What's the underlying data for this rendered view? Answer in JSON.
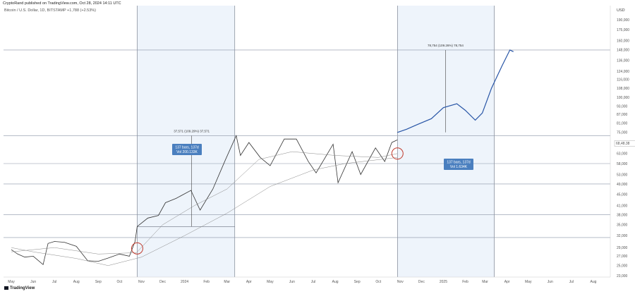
{
  "header": {
    "author_line": "CryptoRand published on TradingView.com, Oct 28, 2024 14:11 UTC",
    "symbol_line": "Bitcoin / U.S. Dollar, 1D, BITSTAMP  +1,788 (+2.53%)",
    "currency": "USD",
    "brand": "TradingView"
  },
  "chart_data": {
    "type": "line",
    "scale": "log",
    "y_ticks": [
      {
        "label": "190,000",
        "v": 190000
      },
      {
        "label": "175,000",
        "v": 175000
      },
      {
        "label": "160,000",
        "v": 160000
      },
      {
        "label": "148,000",
        "v": 148000
      },
      {
        "label": "136,000",
        "v": 136000
      },
      {
        "label": "124,000",
        "v": 124000
      },
      {
        "label": "116,000",
        "v": 116000
      },
      {
        "label": "108,000",
        "v": 108000
      },
      {
        "label": "100,000",
        "v": 100000
      },
      {
        "label": "93,000",
        "v": 93000
      },
      {
        "label": "87,000",
        "v": 87000
      },
      {
        "label": "81,000",
        "v": 81000
      },
      {
        "label": "75,000",
        "v": 75000
      },
      {
        "label": "69,000",
        "v": 69000
      },
      {
        "label": "63,000",
        "v": 63000
      },
      {
        "label": "58,000",
        "v": 58000
      },
      {
        "label": "53,000",
        "v": 53000
      },
      {
        "label": "49,000",
        "v": 49000
      },
      {
        "label": "45,000",
        "v": 45000
      },
      {
        "label": "41,000",
        "v": 41000
      },
      {
        "label": "38,000",
        "v": 38000
      },
      {
        "label": "35,000",
        "v": 35000
      },
      {
        "label": "32,000",
        "v": 32000
      },
      {
        "label": "29,000",
        "v": 29000
      },
      {
        "label": "27,000",
        "v": 27000
      },
      {
        "label": "25,000",
        "v": 25000
      },
      {
        "label": "23,000",
        "v": 23000
      }
    ],
    "x_ticks": [
      "May",
      "Jun",
      "Jul",
      "Aug",
      "Sep",
      "Oct",
      "Nov",
      "Dec",
      "2024",
      "Feb",
      "Mar",
      "Apr",
      "May",
      "Jun",
      "Jul",
      "Aug",
      "Sep",
      "Oct",
      "Nov",
      "Dec",
      "2025",
      "Feb",
      "Mar",
      "Apr",
      "May",
      "Jun",
      "Jul",
      "Aug"
    ],
    "price_tag": {
      "label": "68,48.38",
      "v": 68480
    },
    "series": [
      {
        "points": [
          [
            "2023-05-01",
            28500
          ],
          [
            "2023-05-10",
            27500
          ],
          [
            "2023-05-20",
            26800
          ],
          [
            "2023-06-01",
            27000
          ],
          [
            "2023-06-15",
            25200
          ],
          [
            "2023-06-22",
            30000
          ],
          [
            "2023-07-01",
            30500
          ],
          [
            "2023-07-15",
            30300
          ],
          [
            "2023-08-01",
            29300
          ],
          [
            "2023-08-17",
            26000
          ],
          [
            "2023-09-01",
            25900
          ],
          [
            "2023-09-15",
            26600
          ],
          [
            "2023-10-01",
            27500
          ],
          [
            "2023-10-15",
            27000
          ],
          [
            "2023-10-23",
            30500
          ],
          [
            "2023-10-26",
            34500
          ],
          [
            "2023-11-10",
            37000
          ],
          [
            "2023-11-25",
            37800
          ],
          [
            "2023-12-05",
            42000
          ],
          [
            "2023-12-20",
            43500
          ],
          [
            "2024-01-10",
            46500
          ],
          [
            "2024-01-23",
            39500
          ],
          [
            "2024-02-10",
            47000
          ],
          [
            "2024-02-28",
            60000
          ],
          [
            "2024-03-14",
            73000
          ],
          [
            "2024-03-20",
            62000
          ],
          [
            "2024-04-01",
            69000
          ],
          [
            "2024-04-17",
            61000
          ],
          [
            "2024-05-01",
            57000
          ],
          [
            "2024-05-21",
            71000
          ],
          [
            "2024-06-07",
            71000
          ],
          [
            "2024-06-24",
            59000
          ],
          [
            "2024-07-05",
            53700
          ],
          [
            "2024-07-29",
            68000
          ],
          [
            "2024-08-05",
            49500
          ],
          [
            "2024-08-25",
            64000
          ],
          [
            "2024-09-06",
            53000
          ],
          [
            "2024-09-27",
            66000
          ],
          [
            "2024-10-10",
            59000
          ],
          [
            "2024-10-20",
            69000
          ],
          [
            "2024-10-28",
            70500
          ]
        ]
      },
      {
        "points": [
          [
            "2024-10-28",
            75000
          ],
          [
            "2024-11-10",
            77000
          ],
          [
            "2024-11-25",
            80000
          ],
          [
            "2024-12-15",
            84000
          ],
          [
            "2025-01-01",
            92000
          ],
          [
            "2025-01-20",
            95000
          ],
          [
            "2025-02-01",
            90000
          ],
          [
            "2025-02-15",
            83000
          ],
          [
            "2025-02-25",
            88000
          ],
          [
            "2025-03-10",
            108000
          ],
          [
            "2025-03-25",
            130000
          ],
          [
            "2025-04-05",
            148000
          ],
          [
            "2025-04-10",
            146000
          ]
        ]
      },
      {
        "points": [
          [
            "2023-05-01",
            28000
          ],
          [
            "2023-07-01",
            29000
          ],
          [
            "2023-09-01",
            27500
          ],
          [
            "2023-10-25",
            27800
          ],
          [
            "2023-12-01",
            35000
          ],
          [
            "2024-01-15",
            41000
          ],
          [
            "2024-03-01",
            47000
          ],
          [
            "2024-04-15",
            60000
          ],
          [
            "2024-06-01",
            64000
          ],
          [
            "2024-08-01",
            62000
          ],
          [
            "2024-10-01",
            61000
          ],
          [
            "2024-10-28",
            63000
          ]
        ]
      },
      {
        "points": [
          [
            "2023-05-01",
            29000
          ],
          [
            "2023-06-01",
            28000
          ],
          [
            "2023-08-01",
            26500
          ],
          [
            "2023-09-15",
            25000
          ],
          [
            "2023-11-01",
            26800
          ],
          [
            "2024-01-01",
            32000
          ],
          [
            "2024-03-01",
            38500
          ],
          [
            "2024-05-01",
            48000
          ],
          [
            "2024-07-01",
            55000
          ],
          [
            "2024-08-15",
            58000
          ],
          [
            "2024-10-28",
            61000
          ]
        ]
      }
    ],
    "annotations": [
      {
        "text": "137 bars, 137d",
        "text2": "Vol 200.133K"
      },
      {
        "text": "137 bars, 137d",
        "text2": "Vol 1.634K"
      },
      {
        "text": "37,571 (109.29%) 37,571"
      },
      {
        "text": "78,754 (109.26%) 78,754"
      }
    ]
  }
}
